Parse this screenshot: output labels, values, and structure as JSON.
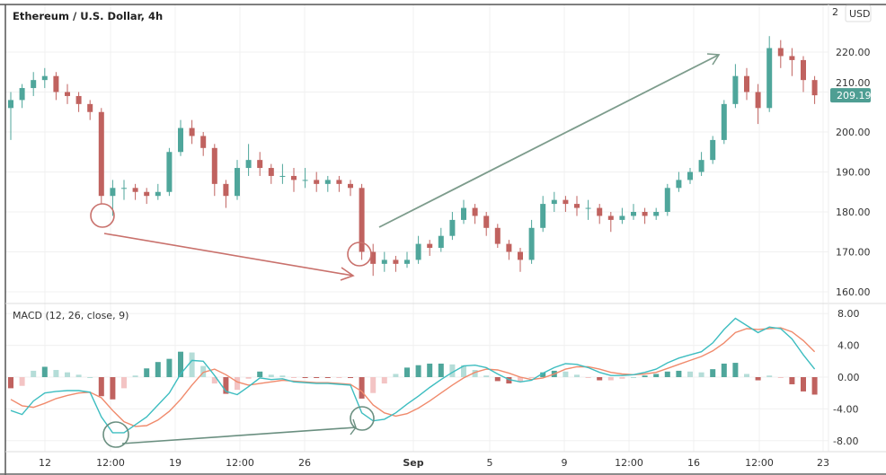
{
  "header": {
    "title": "Ethereum / U.S. Dollar, 4h",
    "currency": "USD"
  },
  "indicator": {
    "label": "MACD (12, 26, close, 9)"
  },
  "colors": {
    "up": "#4fa69b",
    "down": "#c0625f",
    "up_light": "#b5ddd8",
    "down_light": "#f3c4c4",
    "macd_line": "#3dbdc0",
    "signal_line": "#f08a6c",
    "annotation_red": "#c9716c",
    "annotation_green": "#6f9a86",
    "last_price_bg": "#4e9e93"
  },
  "chart_data": [
    {
      "type": "candlestick",
      "title": "Ethereum / U.S. Dollar, 4h",
      "ylim": [
        157,
        232
      ],
      "y_ticks": [
        "160.00",
        "170.00",
        "180.00",
        "190.00",
        "200.00",
        "210.00",
        "220.00"
      ],
      "y_tick_values": [
        160,
        170,
        180,
        190,
        200,
        210,
        220
      ],
      "x_ticks": [
        "12",
        "12:00",
        "19",
        "12:00",
        "26",
        "Sep",
        "5",
        "9",
        "12:00",
        "16",
        "12:00",
        "23"
      ],
      "last_price": "209.19",
      "grid": true,
      "ohlc": [
        [
          206,
          210,
          198,
          208
        ],
        [
          208,
          212,
          206,
          211
        ],
        [
          211,
          215,
          209,
          213
        ],
        [
          213,
          216,
          211,
          214
        ],
        [
          214,
          215,
          208,
          210
        ],
        [
          210,
          212,
          207,
          209
        ],
        [
          209,
          210,
          205,
          207
        ],
        [
          207,
          208,
          203,
          205
        ],
        [
          205,
          206,
          182,
          184
        ],
        [
          184,
          188,
          179,
          186
        ],
        [
          186,
          188,
          183,
          186
        ],
        [
          186,
          187,
          183,
          185
        ],
        [
          185,
          186,
          182,
          184
        ],
        [
          184,
          187,
          183,
          185
        ],
        [
          185,
          196,
          184,
          195
        ],
        [
          195,
          203,
          194,
          201
        ],
        [
          201,
          203,
          197,
          199
        ],
        [
          199,
          200,
          194,
          196
        ],
        [
          196,
          197,
          184,
          187
        ],
        [
          187,
          188,
          181,
          184
        ],
        [
          184,
          193,
          183,
          191
        ],
        [
          191,
          197,
          189,
          193
        ],
        [
          193,
          195,
          189,
          191
        ],
        [
          191,
          192,
          187,
          189
        ],
        [
          189,
          192,
          187,
          189
        ],
        [
          189,
          191,
          185,
          188
        ],
        [
          188,
          191,
          186,
          188
        ],
        [
          188,
          190,
          185,
          187
        ],
        [
          187,
          189,
          185,
          188
        ],
        [
          188,
          189,
          185,
          187
        ],
        [
          187,
          188,
          184,
          186
        ],
        [
          186,
          187,
          168,
          170
        ],
        [
          170,
          172,
          164,
          167
        ],
        [
          167,
          170,
          165,
          168
        ],
        [
          168,
          169,
          165,
          167
        ],
        [
          167,
          170,
          166,
          168
        ],
        [
          168,
          174,
          167,
          172
        ],
        [
          172,
          173,
          169,
          171
        ],
        [
          171,
          176,
          170,
          174
        ],
        [
          174,
          180,
          173,
          178
        ],
        [
          178,
          183,
          177,
          181
        ],
        [
          181,
          182,
          177,
          179
        ],
        [
          179,
          180,
          174,
          176
        ],
        [
          176,
          177,
          171,
          172
        ],
        [
          172,
          173,
          168,
          170
        ],
        [
          170,
          171,
          165,
          168
        ],
        [
          168,
          178,
          167,
          176
        ],
        [
          176,
          184,
          175,
          182
        ],
        [
          182,
          185,
          180,
          183
        ],
        [
          183,
          184,
          180,
          182
        ],
        [
          182,
          184,
          179,
          181
        ],
        [
          181,
          183,
          178,
          181
        ],
        [
          181,
          182,
          177,
          179
        ],
        [
          179,
          180,
          175,
          178
        ],
        [
          178,
          181,
          177,
          179
        ],
        [
          179,
          182,
          178,
          180
        ],
        [
          180,
          181,
          177,
          179
        ],
        [
          179,
          181,
          178,
          180
        ],
        [
          180,
          187,
          179,
          186
        ],
        [
          186,
          190,
          185,
          188
        ],
        [
          188,
          191,
          187,
          190
        ],
        [
          190,
          195,
          189,
          193
        ],
        [
          193,
          199,
          192,
          198
        ],
        [
          198,
          208,
          197,
          207
        ],
        [
          207,
          217,
          206,
          214
        ],
        [
          214,
          216,
          208,
          210
        ],
        [
          210,
          212,
          202,
          206
        ],
        [
          206,
          224,
          205,
          221
        ],
        [
          221,
          223,
          216,
          219
        ],
        [
          219,
          221,
          214,
          218
        ],
        [
          218,
          219,
          210,
          213
        ],
        [
          213,
          214,
          207,
          209.19
        ]
      ]
    },
    {
      "type": "line",
      "title": "MACD (12, 26, close, 9)",
      "ylim": [
        -9.5,
        9.5
      ],
      "y_ticks": [
        "8.00",
        "4.00",
        "0.00",
        "-4.00",
        "-8.00"
      ],
      "y_tick_values": [
        8,
        4,
        0,
        -4,
        -8
      ],
      "series": [
        {
          "values": [
            -4.2,
            -4.7,
            -3.0,
            -2.0,
            -1.8,
            -1.7,
            -1.7,
            -1.9,
            -5.0,
            -7.0,
            -7.0,
            -6.0,
            -5.0,
            -3.5,
            -2.0,
            0.4,
            2.1,
            2.0,
            0.2,
            -1.8,
            -2.2,
            -1.2,
            -0.1,
            -0.3,
            -0.2,
            -0.6,
            -0.7,
            -0.8,
            -0.8,
            -0.9,
            -1.0,
            -4.5,
            -5.5,
            -5.3,
            -4.5,
            -3.4,
            -2.4,
            -1.3,
            -0.3,
            0.6,
            1.4,
            1.5,
            1.2,
            0.4,
            -0.3,
            -0.6,
            -0.4,
            0.5,
            1.2,
            1.7,
            1.6,
            1.2,
            0.6,
            0.2,
            0.2,
            0.3,
            0.6,
            1.0,
            1.8,
            2.4,
            2.8,
            3.2,
            4.3,
            6.0,
            7.4,
            6.5,
            5.6,
            6.3,
            6.1,
            4.8,
            2.8,
            1.0
          ]
        },
        {
          "values": [
            -2.8,
            -3.6,
            -3.8,
            -3.3,
            -2.7,
            -2.3,
            -2.0,
            -1.9,
            -2.6,
            -4.2,
            -5.6,
            -6.2,
            -6.1,
            -5.4,
            -4.3,
            -2.8,
            -1.0,
            0.6,
            1.0,
            0.3,
            -0.6,
            -1.0,
            -0.8,
            -0.6,
            -0.4,
            -0.5,
            -0.6,
            -0.7,
            -0.7,
            -0.8,
            -0.9,
            -1.8,
            -3.5,
            -4.5,
            -4.9,
            -4.6,
            -3.9,
            -3.0,
            -2.0,
            -1.0,
            -0.1,
            0.6,
            1.0,
            0.9,
            0.5,
            0.0,
            -0.3,
            -0.1,
            0.4,
            1.0,
            1.3,
            1.3,
            1.0,
            0.6,
            0.4,
            0.3,
            0.4,
            0.6,
            1.1,
            1.6,
            2.1,
            2.6,
            3.3,
            4.3,
            5.6,
            6.1,
            6.0,
            6.1,
            6.2,
            5.7,
            4.6,
            3.2
          ]
        }
      ]
    }
  ]
}
